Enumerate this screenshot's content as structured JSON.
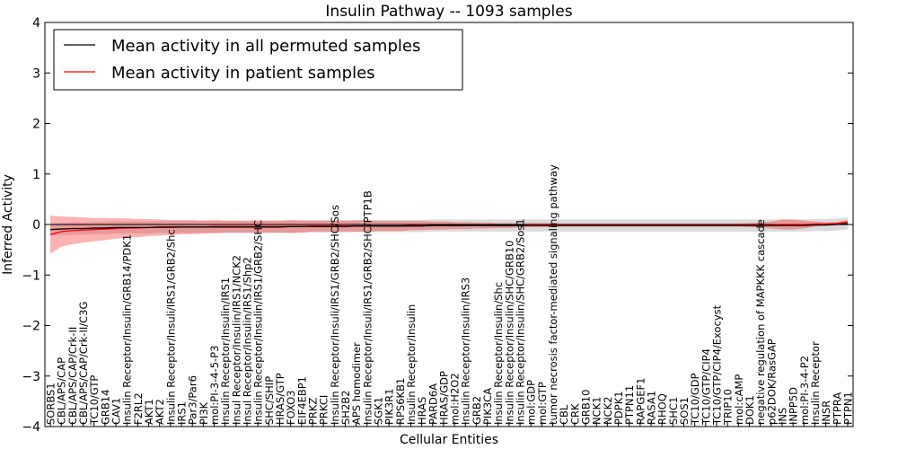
{
  "chart_data": {
    "type": "line",
    "title": "Insulin Pathway -- 1093 samples",
    "xlabel": "Cellular Entities",
    "ylabel": "Inferred Activity",
    "ylim": [
      -4,
      4
    ],
    "yticks": [
      4,
      3,
      2,
      1,
      0,
      -1,
      -2,
      -3,
      -4
    ],
    "ytick_labels": [
      "4",
      "3",
      "2",
      "1",
      "0",
      "−1",
      "−2",
      "−3",
      "−4"
    ],
    "legend": {
      "placement": "top-left",
      "entries": [
        {
          "label": "Mean activity in all permuted samples",
          "color": "#000000"
        },
        {
          "label": "Mean activity in patient samples",
          "color": "#ff0000"
        }
      ]
    },
    "categories": [
      "SORBS1",
      "CBL/APS/CAP",
      "CBL/APS/CAP/Crk-II",
      "CBL/APS/CAP/Crk-II/C3G",
      "TC10/GTP",
      "GRB14",
      "CAV1",
      "Insulin Receptor/Insulin/GRB14/PDK1",
      "F2RL2",
      "AKT1",
      "AKT2",
      "Insulin Receptor/Insuli/IRS1/GRB2/Shc",
      "IRS1",
      "Par3/Par6",
      "PI3K",
      "mol:PI-3-4-5-P3",
      "Insulin Receptor/Insulin/IRS1",
      "Insul Receptor/Insulin/IRS1/NCK2",
      "Insul Receptor/Insulin/IRS1/Shp2",
      "Insulin Receptor/Insulin/IRS1/GRB2/SHC",
      "SHC/SHIP",
      "HRAS/GTP",
      "FOXO3",
      "EIF4EBP1",
      "PRKZ",
      "PRKCI",
      "Insulin Receptor/Insuli/IRS1/GRB2/SHC/Sos",
      "SH2B2",
      "APS homodimer",
      "Insulin Receptor/Insuli/IRS1/GRB2/SHC/PTP1B",
      "SGK1",
      "PIK3R1",
      "RPS6KB1",
      "Insulin Receptor/Insulin",
      "HRAS",
      "PARD6A",
      "HRAS/GDP",
      "mol:H2O2",
      "Insulin Receptor/Insulin/IRS3",
      "GRB2",
      "PIK3CA",
      "Insulin Receptor/Insulin/Shc",
      "Insulin Receptor/Insulin/SHC/GRB10",
      "Insulin Receptor/Insulin/SHC/GRB2/Sos1",
      "mol:GDP",
      "mol:GTP",
      "tumor necrosis factor-mediated signaling pathway",
      "CBL",
      "CRK",
      "GRB10",
      "NCK1",
      "NCK2",
      "PDPK1",
      "PTPN11",
      "RAPGEF1",
      "RASA1",
      "RHOQ",
      "SHC1",
      "SOS1",
      "TC10/GDP",
      "TC10/GTP/CIP4",
      "TC10/GTP/CIP4/Exocyst",
      "TRIP10",
      "mol:cAMP",
      "DOK1",
      "negative regulation of MAPKKK cascade",
      "p62DOK/RasGAP",
      "INS",
      "INPP5D",
      "mol:PI-3-4-P2",
      "Insulin Receptor",
      "INSR",
      "PTPRA",
      "PTPN1"
    ],
    "series": [
      {
        "name": "Mean activity in patient samples",
        "color": "#ff0000",
        "values": [
          -0.2,
          -0.14,
          -0.12,
          -0.11,
          -0.1,
          -0.09,
          -0.08,
          -0.07,
          -0.07,
          -0.06,
          -0.06,
          -0.06,
          -0.05,
          -0.05,
          -0.05,
          -0.04,
          -0.04,
          -0.04,
          -0.04,
          -0.04,
          -0.04,
          -0.04,
          -0.04,
          -0.04,
          -0.03,
          -0.03,
          -0.03,
          -0.03,
          -0.03,
          -0.03,
          -0.03,
          -0.03,
          -0.03,
          -0.02,
          -0.02,
          -0.02,
          -0.02,
          -0.02,
          -0.02,
          -0.02,
          -0.02,
          -0.02,
          -0.02,
          -0.02,
          -0.01,
          -0.01,
          -0.01,
          -0.01,
          -0.01,
          -0.01,
          -0.01,
          -0.01,
          -0.01,
          -0.01,
          -0.01,
          -0.01,
          -0.01,
          -0.01,
          -0.01,
          -0.01,
          -0.01,
          -0.01,
          -0.01,
          -0.01,
          -0.01,
          -0.01,
          -0.01,
          0.0,
          0.0,
          0.0,
          0.01,
          0.01,
          0.02,
          0.05
        ],
        "band_halfwidth": [
          0.38,
          0.3,
          0.27,
          0.25,
          0.23,
          0.22,
          0.2,
          0.19,
          0.18,
          0.17,
          0.16,
          0.15,
          0.14,
          0.14,
          0.13,
          0.13,
          0.12,
          0.12,
          0.12,
          0.12,
          0.12,
          0.12,
          0.13,
          0.12,
          0.11,
          0.11,
          0.11,
          0.11,
          0.11,
          0.11,
          0.1,
          0.1,
          0.1,
          0.09,
          0.09,
          0.08,
          0.08,
          0.07,
          0.07,
          0.06,
          0.06,
          0.05,
          0.05,
          0.04,
          0.04,
          0.04,
          0.04,
          0.03,
          0.03,
          0.03,
          0.03,
          0.03,
          0.03,
          0.03,
          0.03,
          0.03,
          0.03,
          0.03,
          0.03,
          0.03,
          0.03,
          0.03,
          0.03,
          0.03,
          0.04,
          0.05,
          0.07,
          0.1,
          0.1,
          0.08,
          0.05,
          0.03,
          0.03,
          0.04
        ]
      },
      {
        "name": "Mean activity in all permuted samples",
        "color": "#000000",
        "values": [
          -0.1,
          -0.09,
          -0.08,
          -0.08,
          -0.07,
          -0.07,
          -0.06,
          -0.06,
          -0.06,
          -0.06,
          -0.05,
          -0.05,
          -0.05,
          -0.05,
          -0.05,
          -0.05,
          -0.05,
          -0.05,
          -0.05,
          -0.05,
          -0.05,
          -0.05,
          -0.04,
          -0.04,
          -0.04,
          -0.04,
          -0.04,
          -0.04,
          -0.03,
          -0.03,
          -0.03,
          -0.03,
          -0.03,
          -0.03,
          -0.03,
          -0.02,
          -0.02,
          -0.02,
          -0.02,
          -0.02,
          -0.02,
          -0.02,
          -0.02,
          -0.02,
          -0.02,
          -0.02,
          -0.02,
          -0.02,
          -0.02,
          -0.02,
          -0.02,
          -0.02,
          -0.02,
          -0.02,
          -0.02,
          -0.02,
          -0.02,
          -0.02,
          -0.02,
          -0.02,
          -0.02,
          -0.02,
          -0.02,
          -0.02,
          -0.02,
          -0.02,
          -0.02,
          -0.02,
          -0.02,
          -0.02,
          -0.01,
          -0.01,
          0.0,
          0.02
        ],
        "band_halfwidth": [
          0.12,
          0.12,
          0.12,
          0.12,
          0.12,
          0.12,
          0.12,
          0.12,
          0.12,
          0.12,
          0.12,
          0.12,
          0.12,
          0.12,
          0.12,
          0.12,
          0.12,
          0.12,
          0.12,
          0.12,
          0.12,
          0.12,
          0.12,
          0.12,
          0.12,
          0.12,
          0.12,
          0.12,
          0.12,
          0.12,
          0.12,
          0.12,
          0.12,
          0.12,
          0.12,
          0.12,
          0.12,
          0.12,
          0.12,
          0.12,
          0.12,
          0.12,
          0.12,
          0.12,
          0.12,
          0.12,
          0.12,
          0.12,
          0.12,
          0.12,
          0.12,
          0.12,
          0.12,
          0.12,
          0.12,
          0.12,
          0.12,
          0.12,
          0.12,
          0.12,
          0.12,
          0.12,
          0.12,
          0.12,
          0.12,
          0.12,
          0.12,
          0.12,
          0.12,
          0.12,
          0.12,
          0.12,
          0.12,
          0.12
        ]
      }
    ],
    "reference_line": 0,
    "grid": false
  }
}
